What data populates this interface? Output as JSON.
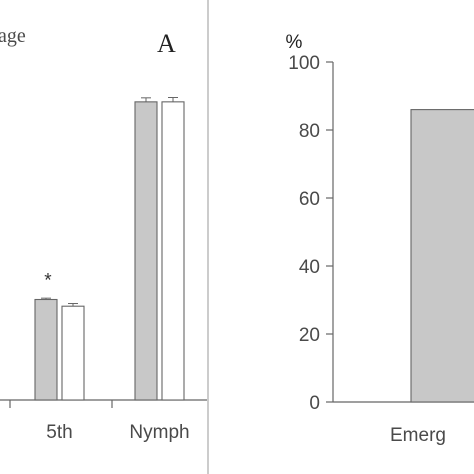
{
  "chart_data": [
    {
      "type": "bar",
      "panel_label": "A",
      "title": "age",
      "categories": [
        "5th",
        "Nymph"
      ],
      "series": [
        {
          "values": [
            30,
            89
          ],
          "errors": [
            0.4,
            1.2
          ],
          "fill": "#c8c8c8"
        },
        {
          "values": [
            28,
            89
          ],
          "errors": [
            0.8,
            1.3
          ],
          "fill": "#ffffff"
        }
      ],
      "annotations": [
        {
          "category": "5th",
          "text": "*"
        }
      ],
      "ylim": [
        0,
        100
      ],
      "grid": false
    },
    {
      "type": "bar",
      "ylabel": "%",
      "categories": [
        "Emerg"
      ],
      "series": [
        {
          "values": [
            86
          ],
          "fill": "#c8c8c8"
        }
      ],
      "yticks": [
        0,
        20,
        40,
        60,
        80,
        100
      ],
      "ylim": [
        0,
        100
      ],
      "grid": false
    }
  ],
  "colors": {
    "axis": "#666666",
    "bar_fill": "#c8c8c8",
    "bar_stroke": "#666666",
    "text": "#4a4a4a"
  }
}
